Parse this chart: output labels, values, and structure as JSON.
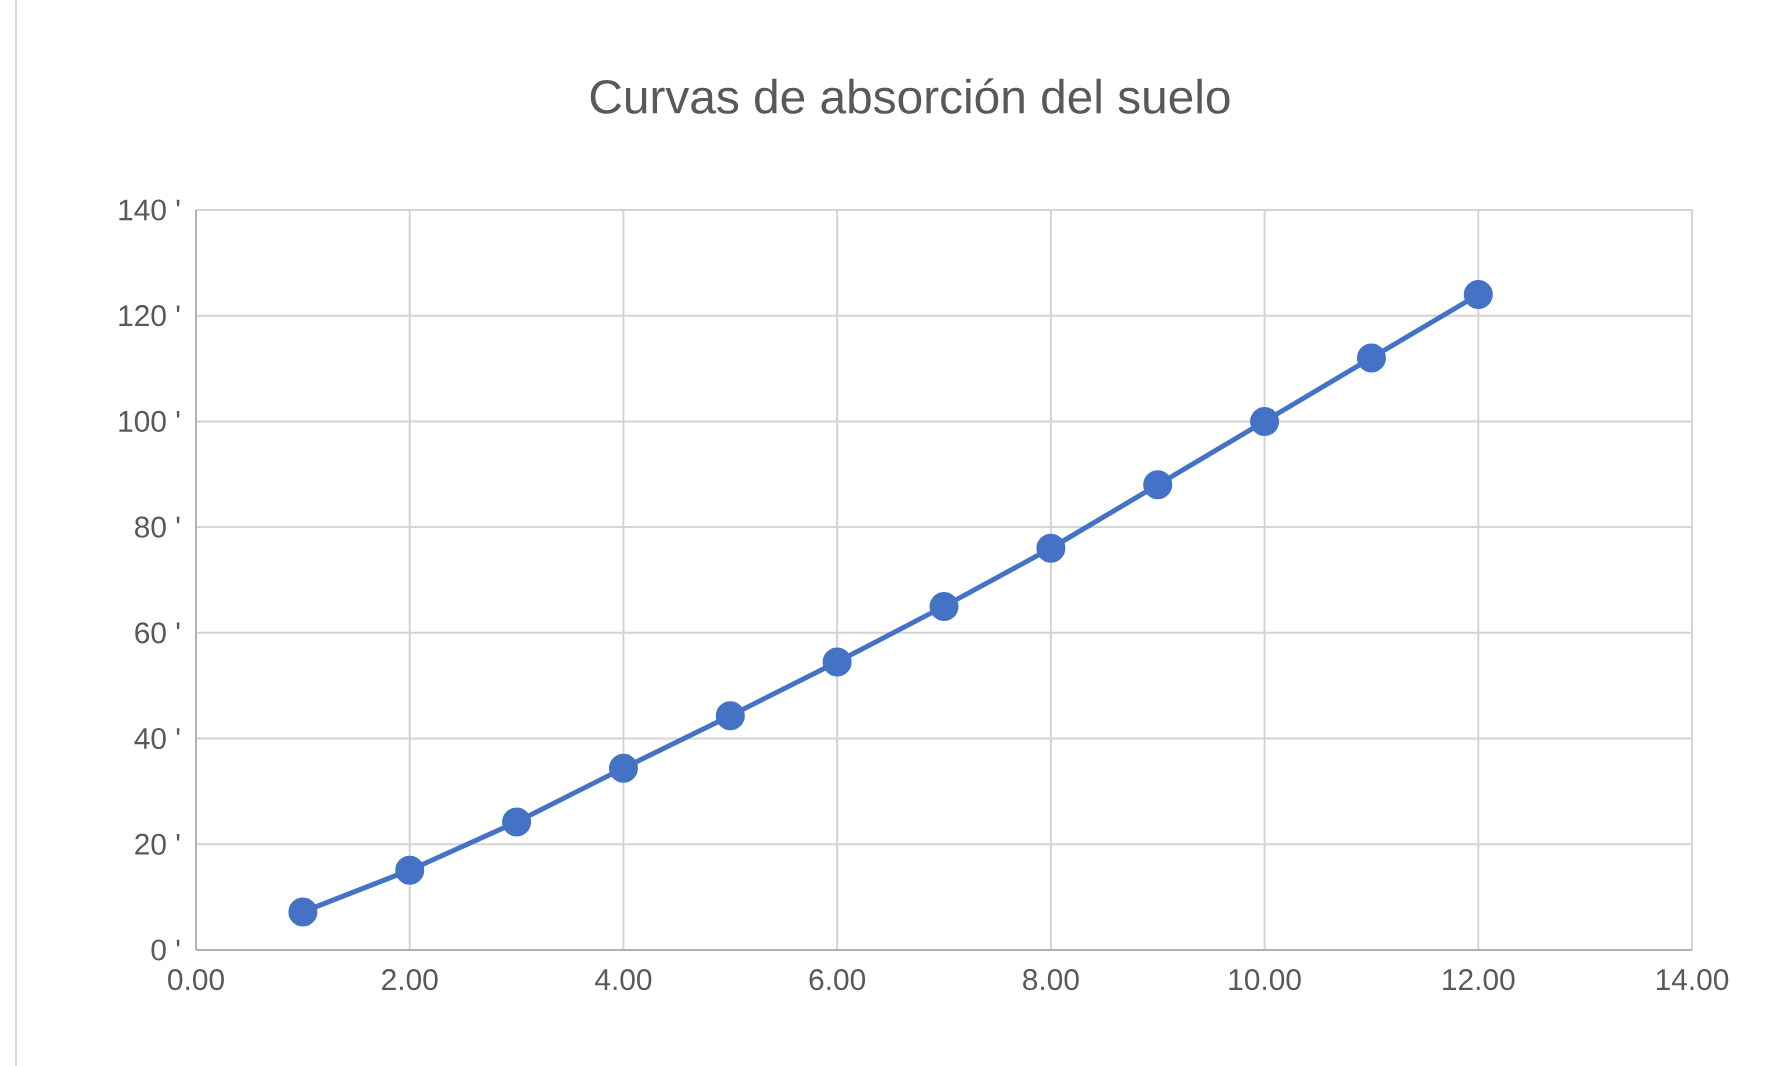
{
  "chart_data": {
    "type": "line",
    "title": "Curvas de absorción del suelo",
    "x": [
      1,
      2,
      3,
      4,
      5,
      6,
      7,
      8,
      9,
      10,
      11,
      12
    ],
    "series": [
      {
        "color": "#4472c4",
        "values": [
          7.2,
          15.1,
          24.2,
          34.4,
          44.3,
          54.5,
          65,
          76,
          88,
          100,
          112,
          124
        ]
      }
    ],
    "xlim": [
      0,
      14
    ],
    "xticks": [
      {
        "value": 0,
        "label": "0.00"
      },
      {
        "value": 2,
        "label": "2.00"
      },
      {
        "value": 4,
        "label": "4.00"
      },
      {
        "value": 6,
        "label": "6.00"
      },
      {
        "value": 8,
        "label": "8.00"
      },
      {
        "value": 10,
        "label": "10.00"
      },
      {
        "value": 12,
        "label": "12.00"
      },
      {
        "value": 14,
        "label": "14.00"
      }
    ],
    "ylim": [
      0,
      140
    ],
    "yticks": [
      {
        "value": 0,
        "label": "0 '"
      },
      {
        "value": 20,
        "label": "20 '"
      },
      {
        "value": 40,
        "label": "40 '"
      },
      {
        "value": 60,
        "label": "60 '"
      },
      {
        "value": 80,
        "label": "80 '"
      },
      {
        "value": 100,
        "label": "100 '"
      },
      {
        "value": 120,
        "label": "120 '"
      },
      {
        "value": 140,
        "label": "140 '"
      }
    ],
    "grid": true,
    "marker": "circle",
    "line_style": "solid"
  }
}
